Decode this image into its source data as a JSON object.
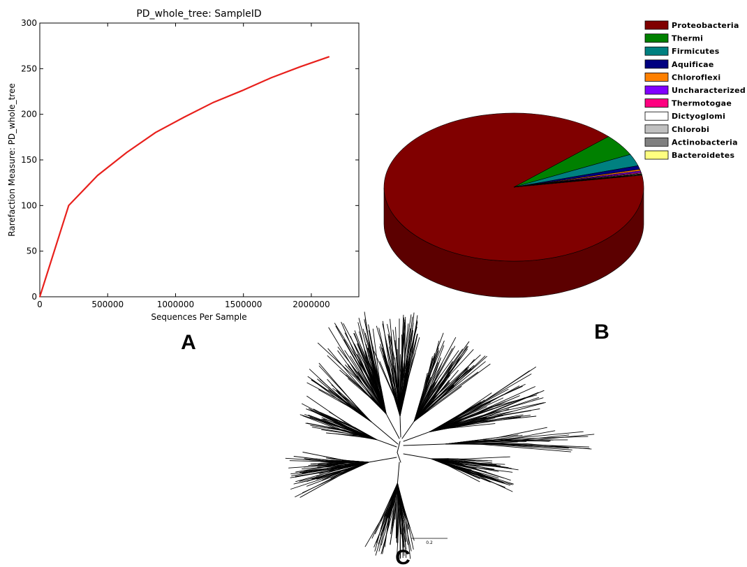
{
  "panels": {
    "a": "A",
    "b": "B",
    "c": "C"
  },
  "chart_data": [
    {
      "type": "line",
      "title": "PD_whole_tree: SampleID",
      "xlabel": "Sequences Per Sample",
      "ylabel": "Rarefaction Measure: PD_whole_tree",
      "xlim": [
        0,
        2350000
      ],
      "ylim": [
        0,
        300
      ],
      "xticks": [
        0,
        500000,
        1000000,
        1500000,
        2000000
      ],
      "xtick_labels": [
        "0",
        "500000",
        "1000000",
        "1500000",
        "2000000"
      ],
      "yticks": [
        0,
        50,
        100,
        150,
        200,
        250,
        300
      ],
      "ytick_labels": [
        "0",
        "50",
        "100",
        "150",
        "200",
        "250",
        "300"
      ],
      "grid": false,
      "series": [
        {
          "color": "#e8201c",
          "x": [
            0,
            213000,
            426000,
            639000,
            852000,
            1065000,
            1278000,
            1491000,
            1704000,
            1917000,
            2130000
          ],
          "y": [
            0,
            100,
            133,
            158,
            180,
            197,
            213,
            226,
            240,
            252,
            263
          ]
        }
      ]
    },
    {
      "type": "pie",
      "style": "3d",
      "legend_position": "top-right",
      "labels": [
        "Proteobacteria",
        "Thermi",
        "Firmicutes",
        "Aquificae",
        "Chloroflexi",
        "Uncharacterized",
        "Thermotogae",
        "Dictyoglomi",
        "Chlorobi",
        "Actinobacteria",
        "Bacteroidetes"
      ],
      "values": [
        90.6,
        4.7,
        2.6,
        0.8,
        0.35,
        0.3,
        0.2,
        0.15,
        0.1,
        0.1,
        0.1
      ],
      "colors": [
        "#800000",
        "#008000",
        "#008080",
        "#000080",
        "#ff8000",
        "#8000ff",
        "#ff0080",
        "#ffffff",
        "#c0c0c0",
        "#808080",
        "#ffff80"
      ]
    }
  ],
  "tree": {
    "type": "unrooted phylogenetic tree",
    "scale_label": "0.2"
  }
}
